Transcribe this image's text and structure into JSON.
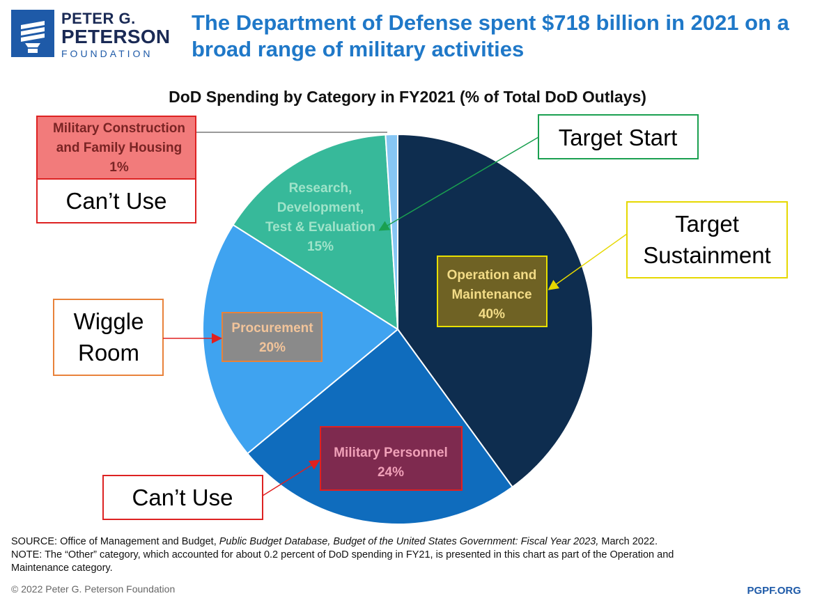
{
  "logo": {
    "line1": "PETER G.",
    "line2": "PETERSON",
    "line3": "FOUNDATION"
  },
  "headline": "The Department of Defense spent $718 billion in 2021 on a broad range of military activities",
  "chart_data": {
    "type": "pie",
    "title": "DoD Spending by Category in FY2021 (% of Total DoD Outlays)",
    "categories": [
      "Operation and Maintenance",
      "Military Personnel",
      "Procurement",
      "Research, Development, Test & Evaluation",
      "Military Construction and Family Housing"
    ],
    "values": [
      40,
      24,
      20,
      15,
      1
    ],
    "colors": [
      "#0e2d4f",
      "#0f6cbd",
      "#3fa3f0",
      "#37b99a",
      "#86c6f4"
    ],
    "slice_labels": [
      {
        "line1": "Operation and",
        "line2": "Maintenance",
        "line3": "40%"
      },
      {
        "line1": "Military Personnel",
        "line2": "24%"
      },
      {
        "line1": "Procurement",
        "line2": "20%"
      },
      {
        "line1": "Research,",
        "line2": "Development,",
        "line3": "Test & Evaluation",
        "line4": "15%"
      },
      {
        "line1": "Military Construction",
        "line2": "and Family Housing",
        "line3": "1%"
      }
    ]
  },
  "annotations": {
    "target_start": "Target Start",
    "target_sustainment_1": "Target",
    "target_sustainment_2": "Sustainment",
    "wiggle_room_1": "Wiggle",
    "wiggle_room_2": "Room",
    "cant_use_top": "Can’t Use",
    "cant_use_bottom": "Can’t Use"
  },
  "source": {
    "line1_a": "SOURCE: Office of Management and Budget, ",
    "line1_b": "Public Budget Database, Budget of the United States Government: Fiscal Year 2023,",
    "line1_c": " March 2022.",
    "line2": "NOTE: The “Other” category, which accounted for about 0.2 percent of DoD spending in FY21, is presented in this chart as part of the Operation and",
    "line3": "Maintenance category."
  },
  "copyright": "© 2022 Peter G. Peterson Foundation",
  "site": "PGPF.ORG"
}
